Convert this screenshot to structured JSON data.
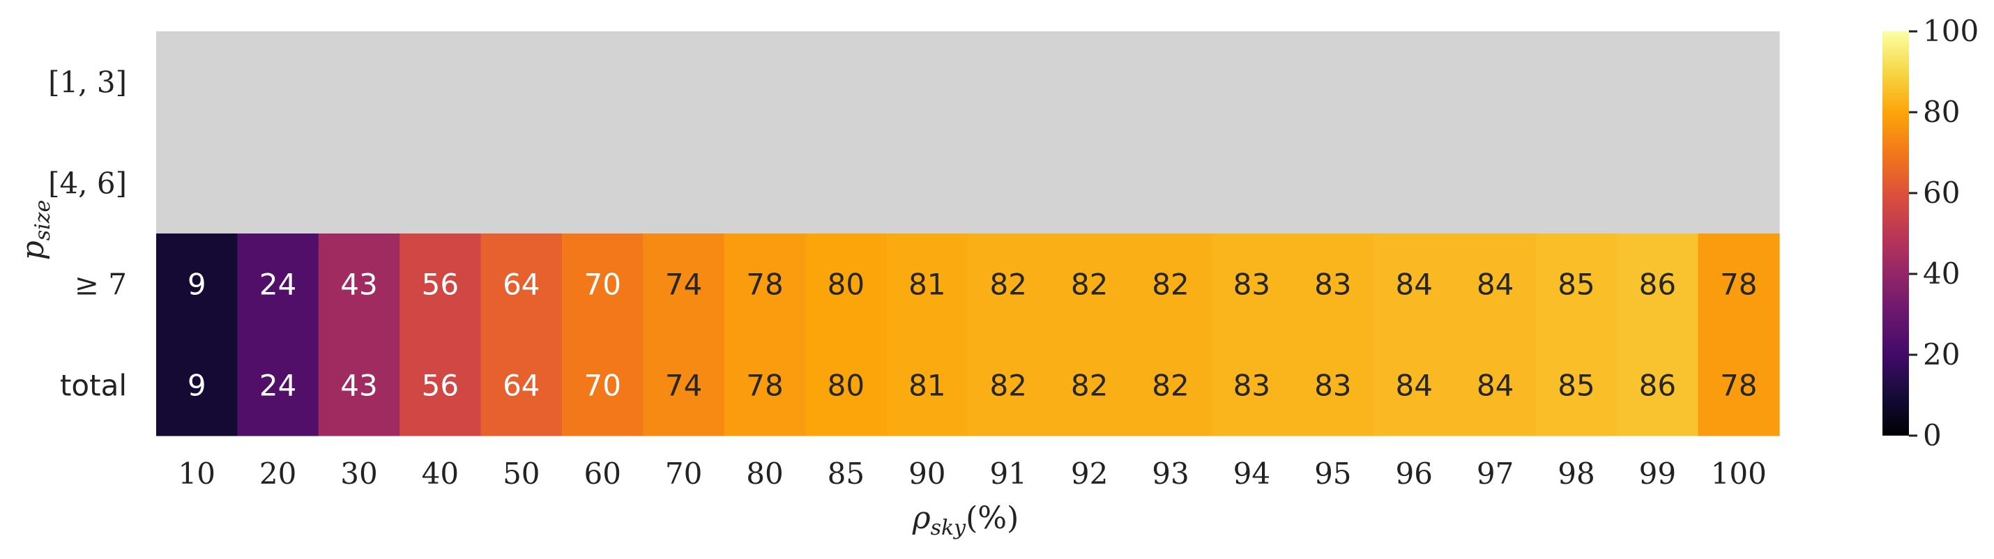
{
  "chart_data": {
    "type": "heatmap",
    "xlabel": "ρ_sky(%)",
    "ylabel": "p_size",
    "x": [
      "10",
      "20",
      "30",
      "40",
      "50",
      "60",
      "70",
      "80",
      "85",
      "90",
      "91",
      "92",
      "93",
      "94",
      "95",
      "96",
      "97",
      "98",
      "99",
      "100"
    ],
    "y": [
      "[1, 3]",
      "[4, 6]",
      "≥ 7",
      "total"
    ],
    "values": [
      [
        null,
        null,
        null,
        null,
        null,
        null,
        null,
        null,
        null,
        null,
        null,
        null,
        null,
        null,
        null,
        null,
        null,
        null,
        null,
        null
      ],
      [
        null,
        null,
        null,
        null,
        null,
        null,
        null,
        null,
        null,
        null,
        null,
        null,
        null,
        null,
        null,
        null,
        null,
        null,
        null,
        null
      ],
      [
        9,
        24,
        43,
        56,
        64,
        70,
        74,
        78,
        80,
        81,
        82,
        82,
        82,
        83,
        83,
        84,
        84,
        85,
        86,
        78
      ],
      [
        9,
        24,
        43,
        56,
        64,
        70,
        74,
        78,
        80,
        81,
        82,
        82,
        82,
        83,
        83,
        84,
        84,
        85,
        86,
        78
      ]
    ],
    "missing_color": "#d3d3d3",
    "colormap": "inferno",
    "colorbar": {
      "min": 0,
      "max": 100,
      "ticks": [
        "0",
        "20",
        "40",
        "60",
        "80",
        "100"
      ]
    }
  }
}
